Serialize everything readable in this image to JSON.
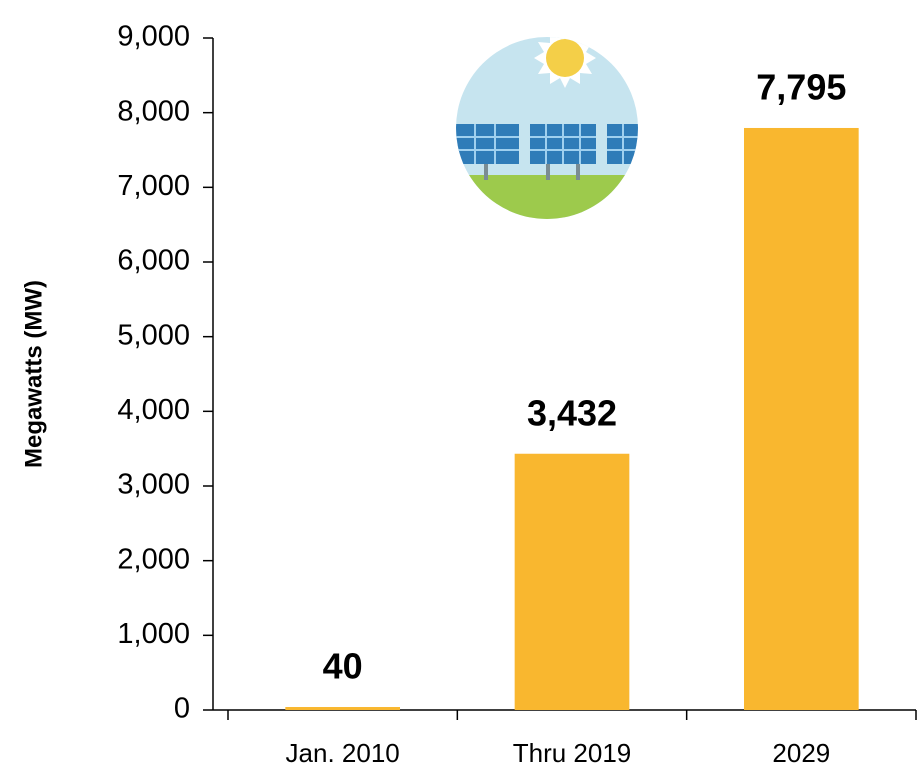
{
  "chart_data": {
    "type": "bar",
    "y_label": "Megawatts (MW)",
    "categories": [
      "Jan. 2010",
      "Thru 2019",
      "2029"
    ],
    "values": [
      40,
      3432,
      7795
    ],
    "value_labels": [
      "40",
      "3,432",
      "7,795"
    ],
    "color": "#f9b72f",
    "ylim": [
      0,
      9000
    ],
    "yticks": [
      0,
      {
        "value": 1000,
        "label": "1,000"
      },
      {
        "value": 2000,
        "label": "2,000"
      },
      {
        "value": 3000,
        "label": "3,000"
      },
      {
        "value": 4000,
        "label": "4,000"
      },
      {
        "value": 5000,
        "label": "5,000"
      },
      {
        "value": 6000,
        "label": "6,000"
      },
      {
        "value": 7000,
        "label": "7,000"
      },
      {
        "value": 8000,
        "label": "8,000"
      },
      {
        "value": 9000,
        "label": "9,000"
      }
    ],
    "grid": false
  }
}
